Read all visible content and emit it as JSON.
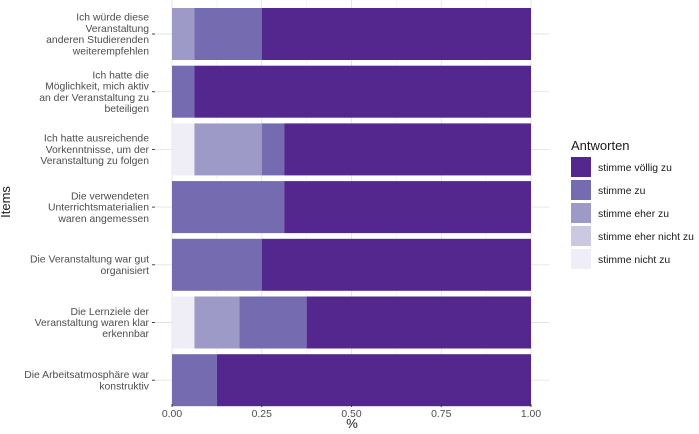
{
  "chart_data": {
    "type": "bar",
    "orientation": "horizontal",
    "stacked": true,
    "xlabel": "%",
    "ylabel": "Items",
    "xlim": [
      0,
      1
    ],
    "x_ticks": [
      "0.00",
      "0.25",
      "0.50",
      "0.75",
      "1.00"
    ],
    "grid": true,
    "legend": {
      "title": "Antworten",
      "position": "right"
    },
    "categories": [
      "Ich würde diese Veranstaltung anderen Studierenden weiterempfehlen",
      "Ich hatte die Möglichkeit, mich aktiv an der Veranstaltung zu beteiligen",
      "Ich hatte ausreichende Vorkenntnisse, um der Veranstaltung zu folgen",
      "Die verwendeten Unterrichtsmaterialien waren angemessen",
      "Die Veranstaltung war gut organisiert",
      "Die Lernziele der Veranstaltung waren klar erkennbar",
      "Die Arbeitsatmosphäre war konstruktiv"
    ],
    "category_lines": [
      [
        "Ich würde diese",
        "Veranstaltung",
        "anderen Studierenden",
        "weiterempfehlen"
      ],
      [
        "Ich hatte die",
        "Möglichkeit, mich aktiv",
        "an der Veranstaltung zu",
        "beteiligen"
      ],
      [
        "Ich hatte ausreichende",
        "Vorkenntnisse, um der",
        "Veranstaltung zu folgen"
      ],
      [
        "Die verwendeten",
        "Unterrichtsmaterialien",
        "waren angemessen"
      ],
      [
        "Die Veranstaltung war gut",
        "organisiert"
      ],
      [
        "Die Lernziele der",
        "Veranstaltung waren klar",
        "erkennbar"
      ],
      [
        "Die Arbeitsatmosphäre war",
        "konstruktiv"
      ]
    ],
    "series": [
      {
        "name": "stimme nicht zu",
        "color": "#efedf5",
        "values": [
          0,
          0,
          0.0625,
          0,
          0,
          0.0625,
          0
        ]
      },
      {
        "name": "stimme eher nicht zu",
        "color": "#cbc9e2",
        "values": [
          0,
          0,
          0,
          0,
          0,
          0,
          0
        ]
      },
      {
        "name": "stimme eher zu",
        "color": "#9e9ac8",
        "values": [
          0.0625,
          0,
          0.1875,
          0,
          0,
          0.125,
          0
        ]
      },
      {
        "name": "stimme zu",
        "color": "#756bb1",
        "values": [
          0.1875,
          0.0625,
          0.0625,
          0.3125,
          0.25,
          0.1875,
          0.125
        ]
      },
      {
        "name": "stimme völlig zu",
        "color": "#54278f",
        "values": [
          0.75,
          0.9375,
          0.6875,
          0.6875,
          0.75,
          0.625,
          0.875
        ]
      }
    ],
    "legend_order": [
      "stimme völlig zu",
      "stimme zu",
      "stimme eher zu",
      "stimme eher nicht zu",
      "stimme nicht zu"
    ]
  }
}
